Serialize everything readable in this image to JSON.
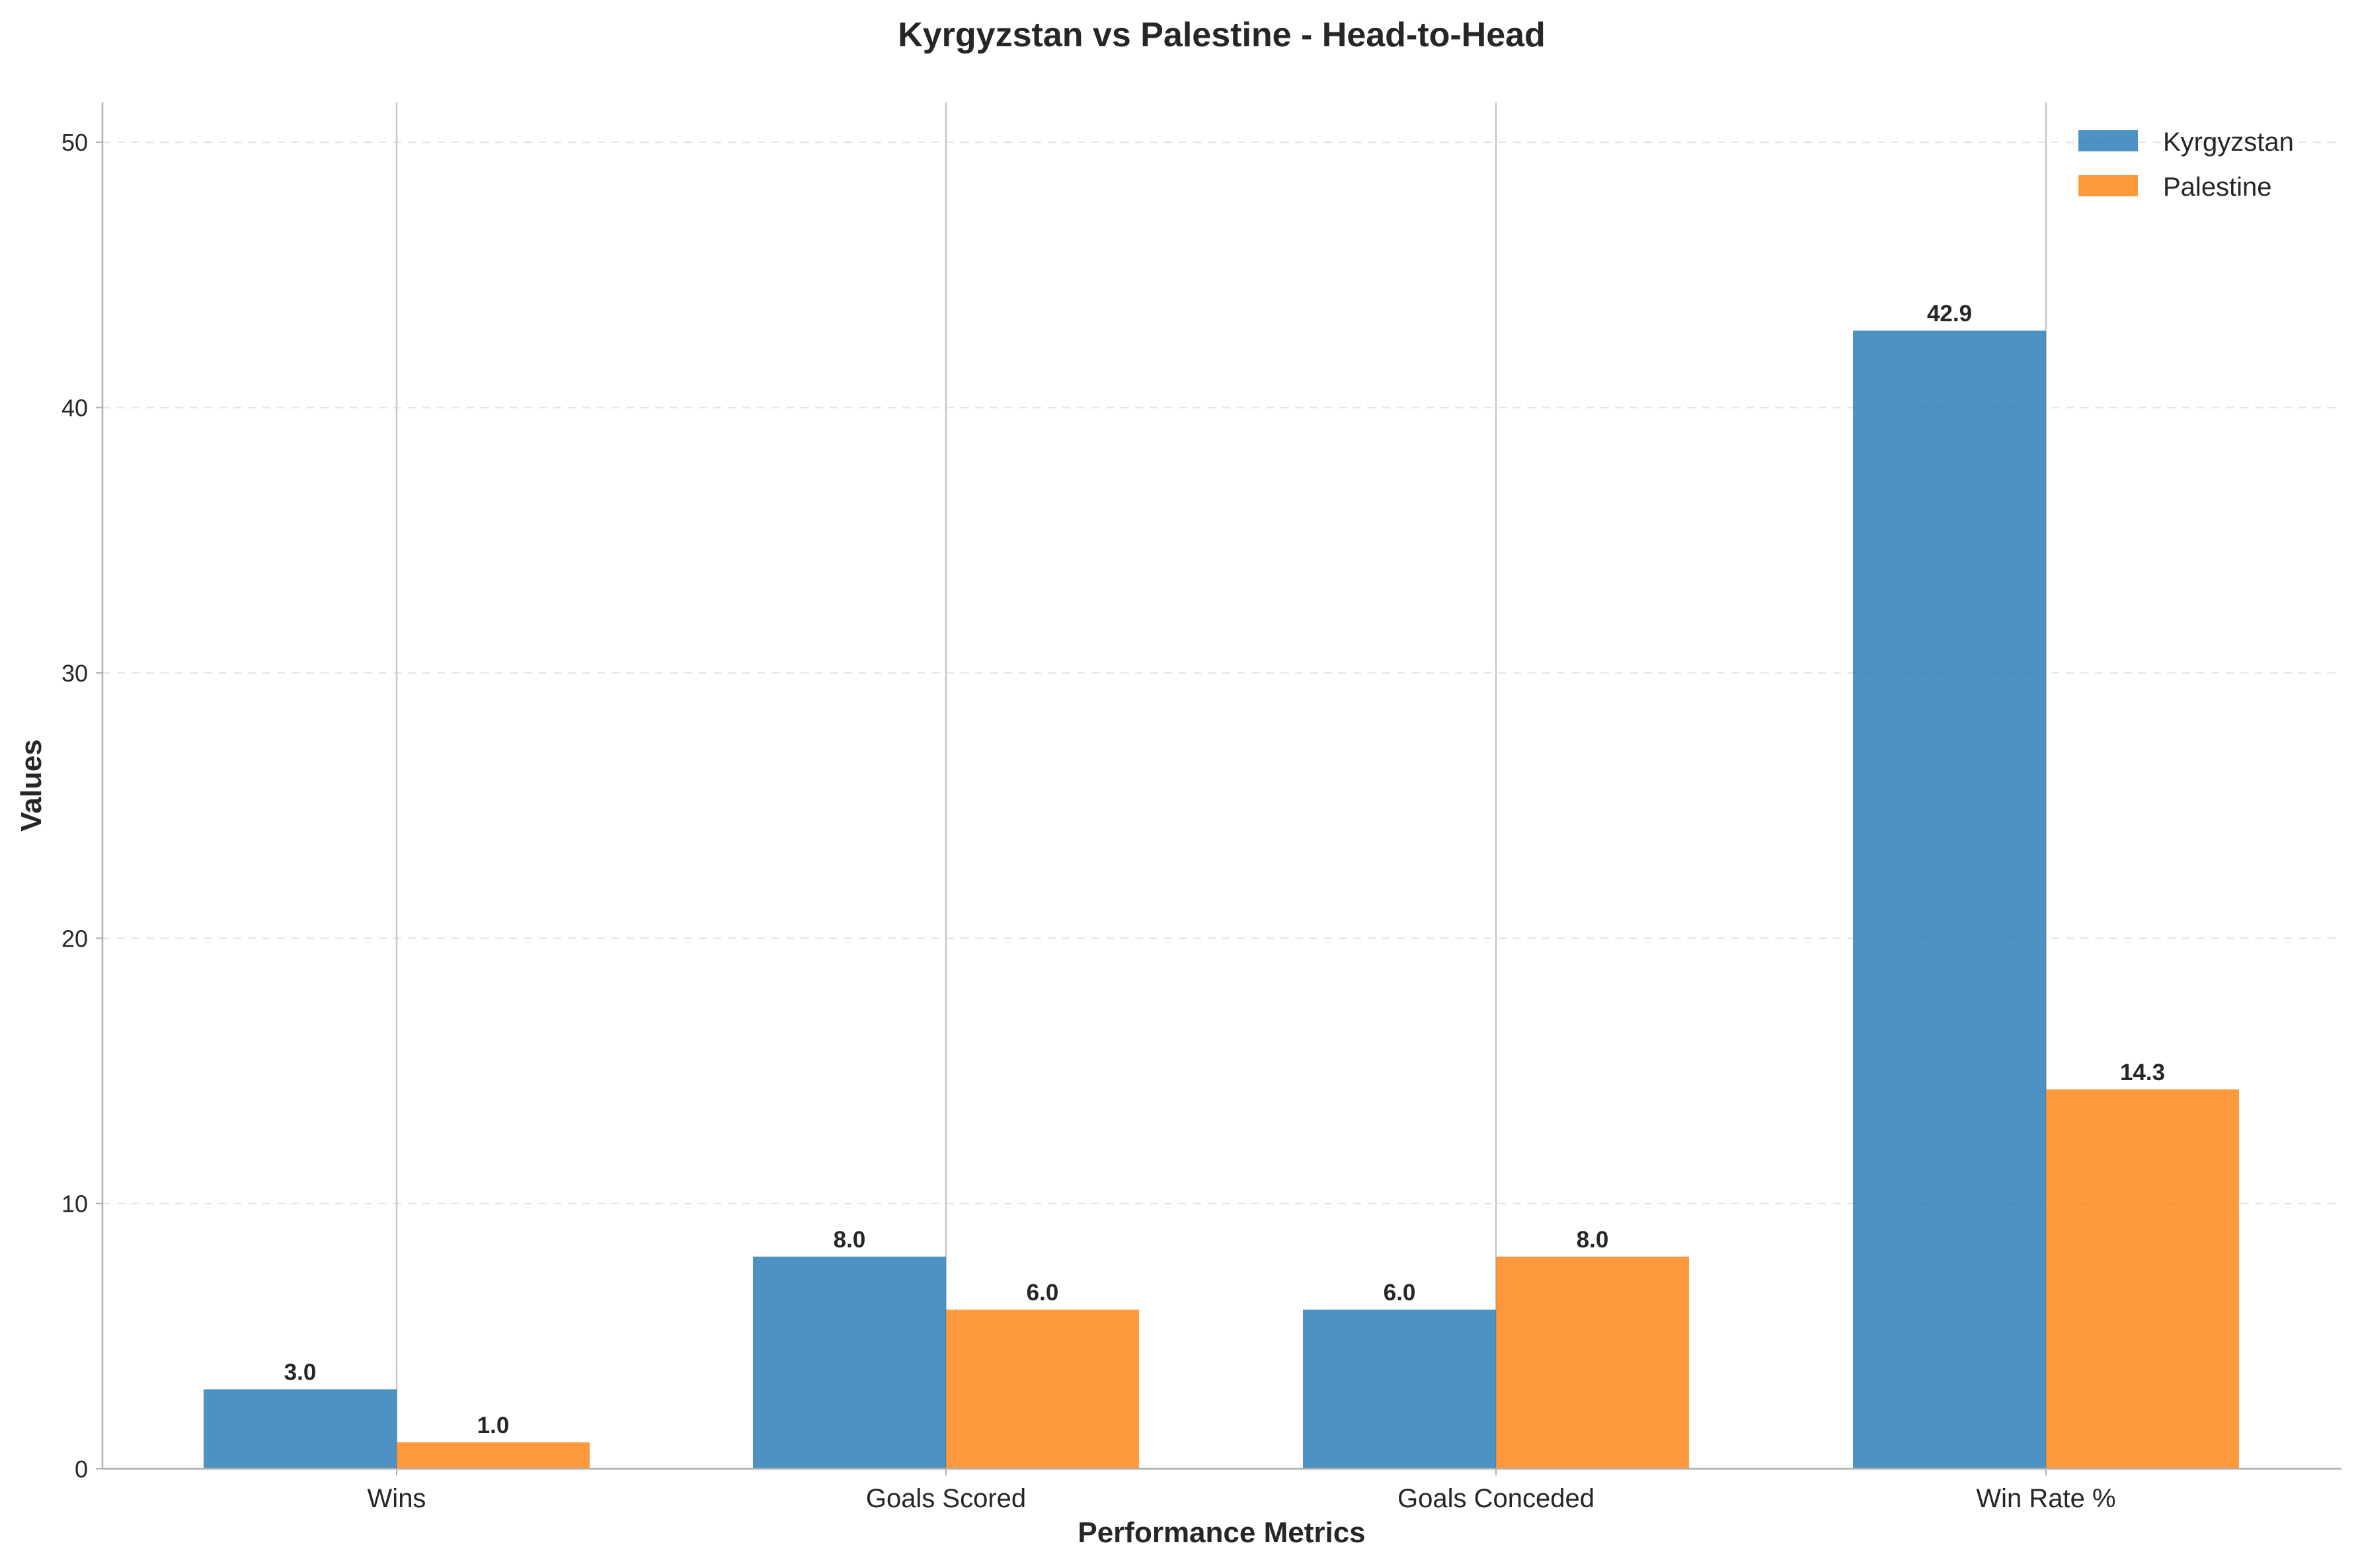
{
  "chart_data": {
    "type": "bar",
    "title": "Kyrgyzstan vs Palestine - Head-to-Head",
    "xlabel": "Performance Metrics",
    "ylabel": "Values",
    "categories": [
      "Wins",
      "Goals Scored",
      "Goals Conceded",
      "Win Rate %"
    ],
    "series": [
      {
        "name": "Kyrgyzstan",
        "color": "#1f77b4",
        "values": [
          3.0,
          8.0,
          6.0,
          42.9
        ],
        "labels": [
          "3.0",
          "8.0",
          "6.0",
          "42.9"
        ]
      },
      {
        "name": "Palestine",
        "color": "#ff7f0e",
        "values": [
          1.0,
          6.0,
          8.0,
          14.3
        ],
        "labels": [
          "1.0",
          "6.0",
          "8.0",
          "14.3"
        ]
      }
    ],
    "ylim": [
      0,
      51.5
    ],
    "yticks": [
      0,
      10,
      20,
      30,
      40,
      50
    ],
    "ytick_labels": [
      "0",
      "10",
      "20",
      "30",
      "40",
      "50"
    ],
    "grid": "y-dashed",
    "legend": "top-right"
  }
}
